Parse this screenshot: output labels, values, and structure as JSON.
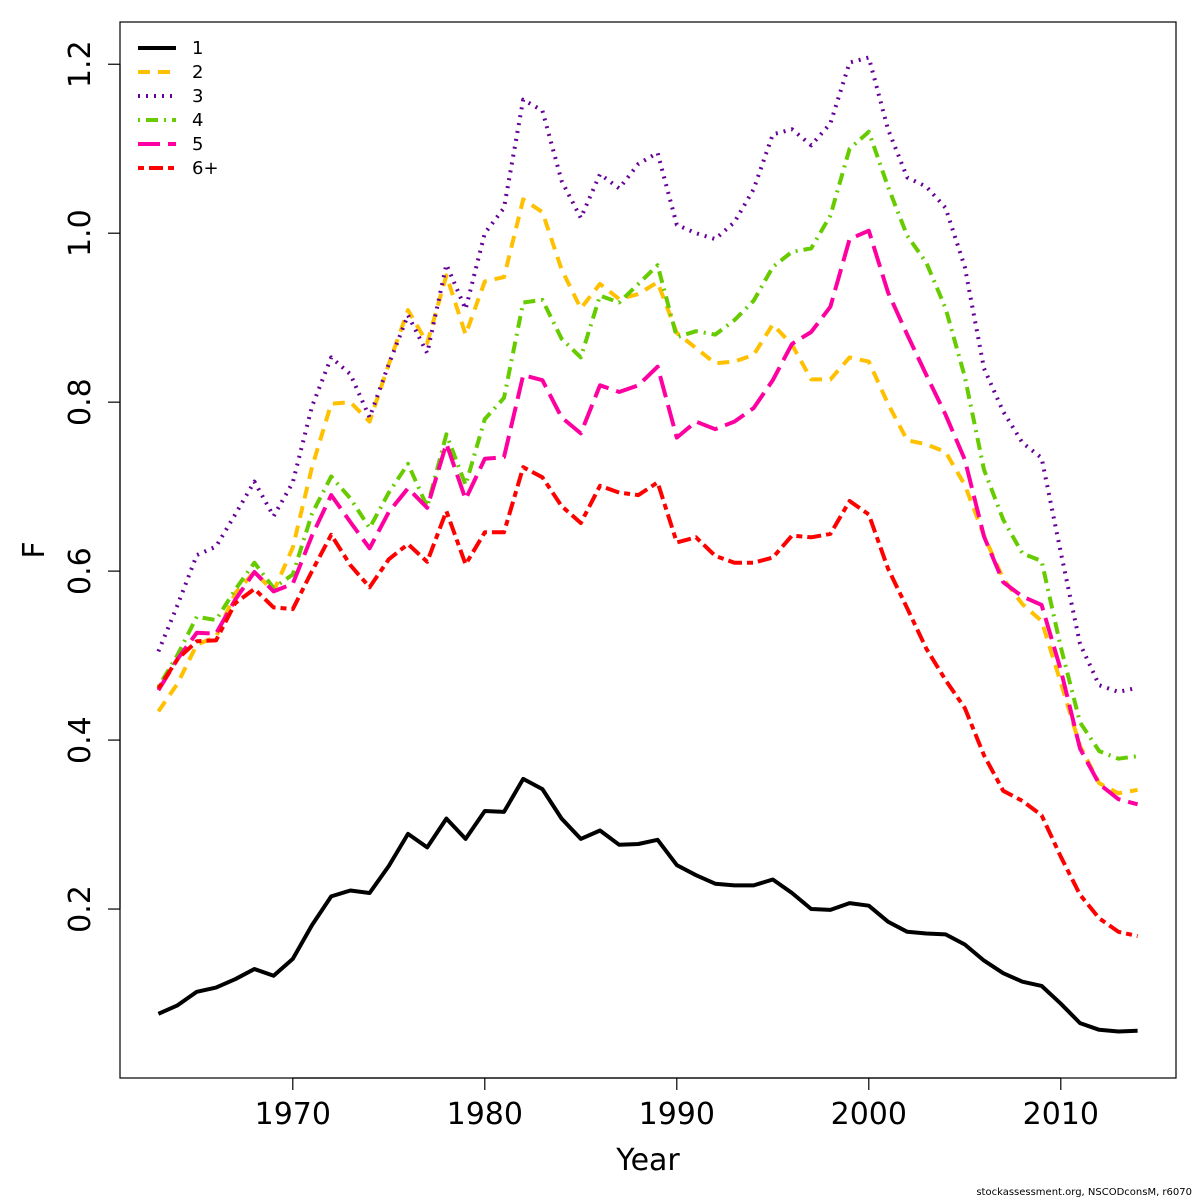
{
  "footer": "stockassessment.org, NSCODconsM, r6070",
  "chart_data": {
    "type": "line",
    "xlabel": "Year",
    "ylabel": "F",
    "xlim": [
      1961,
      2016
    ],
    "ylim": [
      0.0,
      1.25
    ],
    "xticks": [
      1970,
      1980,
      1990,
      2000,
      2010
    ],
    "yticks": [
      0.2,
      0.4,
      0.6,
      0.8,
      1.0,
      1.2
    ],
    "yticklabels": [
      "0.2",
      "0.4",
      "0.6",
      "0.8",
      "1.0",
      "1.2"
    ],
    "grid": false,
    "legend_position": "top-left",
    "x": [
      1963,
      1964,
      1965,
      1966,
      1967,
      1968,
      1969,
      1970,
      1971,
      1972,
      1973,
      1974,
      1975,
      1976,
      1977,
      1978,
      1979,
      1980,
      1981,
      1982,
      1983,
      1984,
      1985,
      1986,
      1987,
      1988,
      1989,
      1990,
      1991,
      1992,
      1993,
      1994,
      1995,
      1996,
      1997,
      1998,
      1999,
      2000,
      2001,
      2002,
      2003,
      2004,
      2005,
      2006,
      2007,
      2008,
      2009,
      2010,
      2011,
      2012,
      2013,
      2014
    ],
    "series": [
      {
        "name": "1",
        "color": "#000000",
        "dash": "solid",
        "values": [
          0.076,
          0.086,
          0.102,
          0.107,
          0.117,
          0.129,
          0.121,
          0.141,
          0.181,
          0.215,
          0.222,
          0.219,
          0.251,
          0.289,
          0.273,
          0.307,
          0.283,
          0.316,
          0.315,
          0.354,
          0.342,
          0.307,
          0.283,
          0.293,
          0.276,
          0.277,
          0.282,
          0.252,
          0.24,
          0.23,
          0.228,
          0.228,
          0.235,
          0.219,
          0.2,
          0.199,
          0.207,
          0.204,
          0.185,
          0.173,
          0.171,
          0.17,
          0.158,
          0.139,
          0.124,
          0.114,
          0.109,
          0.088,
          0.065,
          0.057,
          0.055,
          0.056
        ]
      },
      {
        "name": "2",
        "color": "#FFC000",
        "dash": "dashed",
        "values": [
          0.434,
          0.467,
          0.513,
          0.522,
          0.574,
          0.599,
          0.576,
          0.628,
          0.723,
          0.798,
          0.8,
          0.777,
          0.845,
          0.909,
          0.87,
          0.95,
          0.88,
          0.943,
          0.948,
          1.04,
          1.025,
          0.957,
          0.911,
          0.94,
          0.922,
          0.928,
          0.942,
          0.882,
          0.864,
          0.846,
          0.848,
          0.856,
          0.892,
          0.868,
          0.827,
          0.827,
          0.853,
          0.848,
          0.798,
          0.755,
          0.75,
          0.741,
          0.702,
          0.642,
          0.591,
          0.561,
          0.541,
          0.468,
          0.393,
          0.349,
          0.337,
          0.341
        ]
      },
      {
        "name": "3",
        "color": "#660099",
        "dash": "dotted",
        "values": [
          0.505,
          0.56,
          0.619,
          0.629,
          0.667,
          0.706,
          0.665,
          0.705,
          0.795,
          0.853,
          0.833,
          0.782,
          0.845,
          0.903,
          0.858,
          0.963,
          0.91,
          1.0,
          1.03,
          1.158,
          1.145,
          1.062,
          1.018,
          1.07,
          1.053,
          1.082,
          1.095,
          1.01,
          1.0,
          0.993,
          1.013,
          1.052,
          1.117,
          1.123,
          1.104,
          1.13,
          1.202,
          1.208,
          1.123,
          1.066,
          1.055,
          1.03,
          0.96,
          0.84,
          0.789,
          0.752,
          0.734,
          0.622,
          0.514,
          0.465,
          0.457,
          0.462
        ]
      },
      {
        "name": "4",
        "color": "#66CC00",
        "dash": "dotdash",
        "values": [
          0.463,
          0.501,
          0.546,
          0.542,
          0.578,
          0.61,
          0.58,
          0.596,
          0.668,
          0.712,
          0.686,
          0.651,
          0.693,
          0.727,
          0.676,
          0.762,
          0.702,
          0.78,
          0.805,
          0.918,
          0.921,
          0.875,
          0.853,
          0.926,
          0.918,
          0.94,
          0.962,
          0.877,
          0.884,
          0.88,
          0.897,
          0.92,
          0.96,
          0.978,
          0.982,
          1.021,
          1.1,
          1.12,
          1.055,
          0.997,
          0.965,
          0.911,
          0.83,
          0.72,
          0.661,
          0.621,
          0.612,
          0.51,
          0.421,
          0.387,
          0.378,
          0.381
        ]
      },
      {
        "name": "5",
        "color": "#FF00A0",
        "dash": "longdash",
        "values": [
          0.459,
          0.496,
          0.527,
          0.526,
          0.566,
          0.599,
          0.576,
          0.585,
          0.642,
          0.69,
          0.658,
          0.627,
          0.67,
          0.698,
          0.675,
          0.751,
          0.685,
          0.733,
          0.735,
          0.832,
          0.826,
          0.782,
          0.763,
          0.82,
          0.812,
          0.82,
          0.842,
          0.758,
          0.777,
          0.768,
          0.777,
          0.793,
          0.826,
          0.869,
          0.883,
          0.913,
          0.993,
          1.003,
          0.93,
          0.88,
          0.832,
          0.785,
          0.732,
          0.641,
          0.587,
          0.57,
          0.56,
          0.483,
          0.39,
          0.348,
          0.33,
          0.324
        ]
      },
      {
        "name": "6+",
        "color": "#FF0000",
        "dash": "twodash",
        "values": [
          0.461,
          0.496,
          0.517,
          0.518,
          0.562,
          0.579,
          0.557,
          0.555,
          0.6,
          0.643,
          0.607,
          0.581,
          0.614,
          0.632,
          0.611,
          0.671,
          0.608,
          0.646,
          0.646,
          0.723,
          0.711,
          0.677,
          0.657,
          0.701,
          0.693,
          0.69,
          0.705,
          0.634,
          0.64,
          0.618,
          0.61,
          0.61,
          0.616,
          0.642,
          0.64,
          0.644,
          0.683,
          0.667,
          0.603,
          0.556,
          0.508,
          0.471,
          0.438,
          0.382,
          0.34,
          0.328,
          0.311,
          0.262,
          0.217,
          0.189,
          0.173,
          0.168
        ]
      }
    ]
  }
}
